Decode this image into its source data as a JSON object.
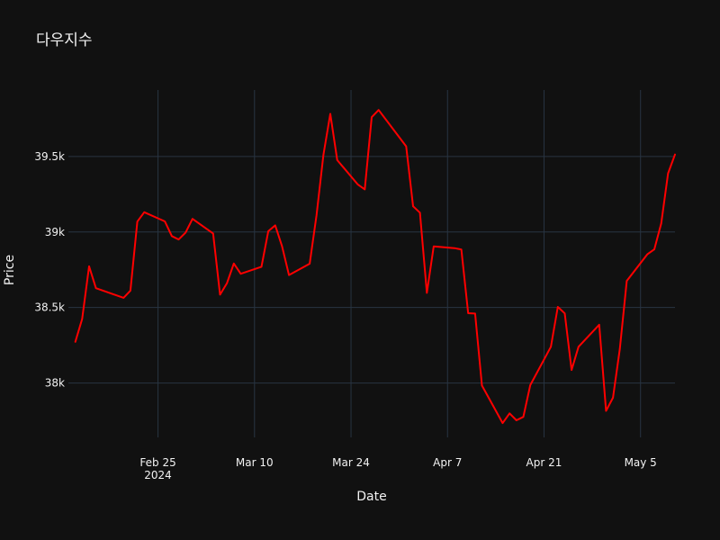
{
  "chart_data": {
    "type": "line",
    "title": "다우지수",
    "xlabel": "Date",
    "ylabel": "Price",
    "ylim": [
      37640,
      39940
    ],
    "xlim": [
      "2024-02-12",
      "2024-05-10"
    ],
    "grid": true,
    "legend": "none",
    "colors": {
      "background": "#111111",
      "line": "#ff0000",
      "grid": "#283442",
      "text": "#f2f2f2"
    },
    "x_ticks": [
      {
        "date": "2024-02-25",
        "label": "Feb 25",
        "sublabel": "2024"
      },
      {
        "date": "2024-03-10",
        "label": "Mar 10",
        "sublabel": ""
      },
      {
        "date": "2024-03-24",
        "label": "Mar 24",
        "sublabel": ""
      },
      {
        "date": "2024-04-07",
        "label": "Apr 7",
        "sublabel": ""
      },
      {
        "date": "2024-04-21",
        "label": "Apr 21",
        "sublabel": ""
      },
      {
        "date": "2024-05-05",
        "label": "May 5",
        "sublabel": ""
      }
    ],
    "y_ticks": [
      {
        "value": 38000,
        "label": "38k"
      },
      {
        "value": 38500,
        "label": "38.5k"
      },
      {
        "value": 39000,
        "label": "39k"
      },
      {
        "value": 39500,
        "label": "39.5k"
      }
    ],
    "x": [
      "2024-02-13",
      "2024-02-14",
      "2024-02-15",
      "2024-02-16",
      "2024-02-20",
      "2024-02-21",
      "2024-02-22",
      "2024-02-23",
      "2024-02-26",
      "2024-02-27",
      "2024-02-28",
      "2024-02-29",
      "2024-03-01",
      "2024-03-04",
      "2024-03-05",
      "2024-03-06",
      "2024-03-07",
      "2024-03-08",
      "2024-03-11",
      "2024-03-12",
      "2024-03-13",
      "2024-03-14",
      "2024-03-15",
      "2024-03-18",
      "2024-03-19",
      "2024-03-20",
      "2024-03-21",
      "2024-03-22",
      "2024-03-25",
      "2024-03-26",
      "2024-03-27",
      "2024-03-28",
      "2024-04-01",
      "2024-04-02",
      "2024-04-03",
      "2024-04-04",
      "2024-04-05",
      "2024-04-08",
      "2024-04-09",
      "2024-04-10",
      "2024-04-11",
      "2024-04-12",
      "2024-04-15",
      "2024-04-16",
      "2024-04-17",
      "2024-04-18",
      "2024-04-19",
      "2024-04-22",
      "2024-04-23",
      "2024-04-24",
      "2024-04-25",
      "2024-04-26",
      "2024-04-29",
      "2024-04-30",
      "2024-05-01",
      "2024-05-02",
      "2024-05-03",
      "2024-05-06",
      "2024-05-07",
      "2024-05-08",
      "2024-05-09",
      "2024-05-10"
    ],
    "series": [
      {
        "values": [
          38273,
          38425,
          38773,
          38628,
          38564,
          38612,
          39069,
          39131,
          39070,
          38973,
          38950,
          38996,
          39087,
          38990,
          38585,
          38661,
          38791,
          38723,
          38770,
          39005,
          39044,
          38905,
          38715,
          38790,
          39111,
          39512,
          39782,
          39476,
          39314,
          39282,
          39760,
          39808,
          39567,
          39170,
          39128,
          38597,
          38905,
          38893,
          38884,
          38462,
          38460,
          37983,
          37735,
          37799,
          37753,
          37776,
          37986,
          38240,
          38504,
          38461,
          38086,
          38240,
          38386,
          37816,
          37903,
          38226,
          38676,
          38853,
          38885,
          39057,
          39388,
          39513
        ]
      }
    ]
  }
}
